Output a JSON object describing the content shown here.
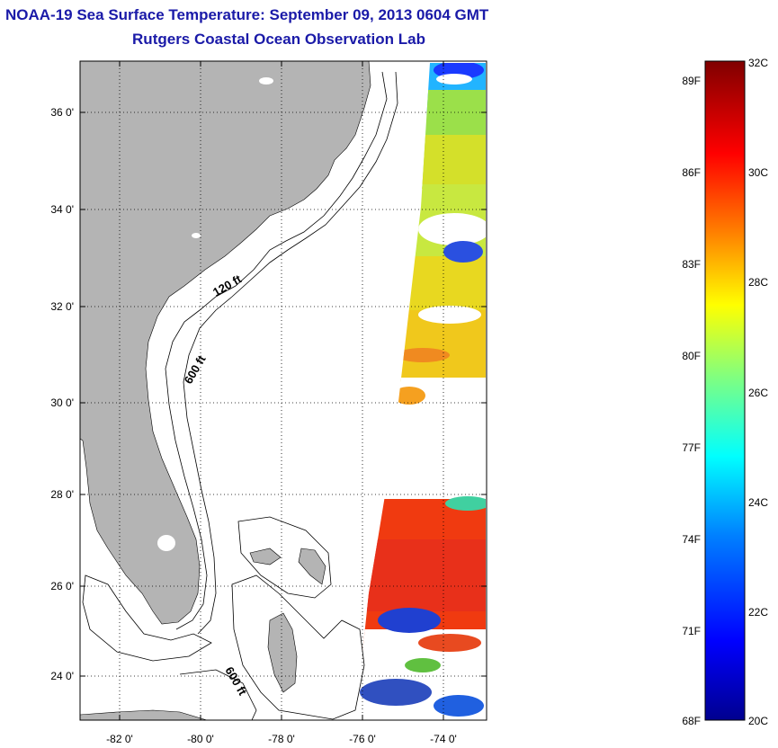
{
  "title": {
    "line1": "NOAA-19 Sea Surface Temperature:  September 09, 2013 0604 GMT",
    "line2": "Rutgers Coastal Ocean Observation Lab"
  },
  "map": {
    "lat_ticks": [
      "36 0'",
      "34 0'",
      "32 0'",
      "30 0'",
      "28 0'",
      "26 0'",
      "24 0'"
    ],
    "lon_ticks": [
      "-82 0'",
      "-80 0'",
      "-78 0'",
      "-76 0'",
      "-74 0'"
    ],
    "contour_labels": [
      "120 ft",
      "600 ft",
      "600 ft"
    ],
    "land_color": "#b4b4b4",
    "ocean_color": "#ffffff"
  },
  "colorbar": {
    "fahrenheit_labels": [
      "89F",
      "86F",
      "83F",
      "80F",
      "77F",
      "74F",
      "71F",
      "68F"
    ],
    "celsius_labels": [
      "32C",
      "30C",
      "28C",
      "26C",
      "24C",
      "22C",
      "20C"
    ],
    "range_c": [
      20,
      32
    ],
    "colors_low_to_high": [
      "#00008f",
      "#0000ff",
      "#0080ff",
      "#00ffff",
      "#80ff80",
      "#ffff00",
      "#ff8000",
      "#ff0000",
      "#800000"
    ]
  }
}
